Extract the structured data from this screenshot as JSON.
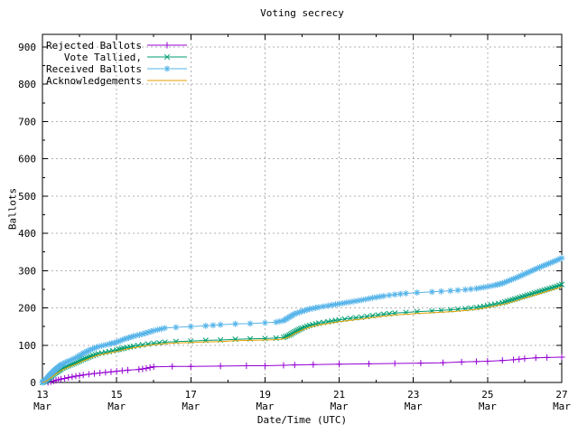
{
  "chart_data": {
    "type": "line",
    "title": "Voting secrecy",
    "xlabel": "Date/Time (UTC)",
    "ylabel": "Ballots",
    "xlim_day_of_march": [
      13,
      27
    ],
    "ylim": [
      0,
      934
    ],
    "grid": true,
    "legend_position": "top-left-inside",
    "y_major_ticks": [
      {
        "value": 0,
        "label": "0"
      },
      {
        "value": 100,
        "label": "100"
      },
      {
        "value": 200,
        "label": "200"
      },
      {
        "value": 300,
        "label": "300"
      },
      {
        "value": 400,
        "label": "400"
      },
      {
        "value": 500,
        "label": "500"
      },
      {
        "value": 600,
        "label": "600"
      },
      {
        "value": 700,
        "label": "700"
      },
      {
        "value": 800,
        "label": "800"
      },
      {
        "value": 900,
        "label": "900"
      }
    ],
    "y_minor_ticks": [
      50,
      150,
      250,
      350,
      450,
      550,
      650,
      750,
      850
    ],
    "x_major_ticks": [
      {
        "day": 13,
        "label_day": "13",
        "label_month": "Mar"
      },
      {
        "day": 15,
        "label_day": "15",
        "label_month": "Mar"
      },
      {
        "day": 17,
        "label_day": "17",
        "label_month": "Mar"
      },
      {
        "day": 19,
        "label_day": "19",
        "label_month": "Mar"
      },
      {
        "day": 21,
        "label_day": "21",
        "label_month": "Mar"
      },
      {
        "day": 23,
        "label_day": "23",
        "label_month": "Mar"
      },
      {
        "day": 25,
        "label_day": "25",
        "label_month": "Mar"
      },
      {
        "day": 27,
        "label_day": "27",
        "label_month": "Mar"
      }
    ],
    "x_minor_tick_days": [
      14,
      16,
      18,
      20,
      22,
      24,
      26
    ],
    "series": [
      {
        "name": "Rejected Ballots",
        "color": "#9400d3",
        "marker": "plus",
        "points": [
          [
            13.15,
            0
          ],
          [
            13.3,
            4
          ],
          [
            13.5,
            9
          ],
          [
            13.7,
            13
          ],
          [
            13.9,
            17
          ],
          [
            14.1,
            20
          ],
          [
            14.4,
            24
          ],
          [
            14.7,
            27
          ],
          [
            15.0,
            30
          ],
          [
            15.3,
            33
          ],
          [
            15.6,
            35
          ],
          [
            15.8,
            38
          ],
          [
            16.0,
            42
          ],
          [
            16.5,
            43
          ],
          [
            17.0,
            43
          ],
          [
            17.8,
            44
          ],
          [
            18.5,
            45
          ],
          [
            19.0,
            45
          ],
          [
            19.5,
            46
          ],
          [
            19.8,
            47
          ],
          [
            20.3,
            48
          ],
          [
            21.0,
            49
          ],
          [
            21.8,
            50
          ],
          [
            22.5,
            51
          ],
          [
            23.2,
            52
          ],
          [
            23.8,
            53
          ],
          [
            24.3,
            55
          ],
          [
            24.7,
            56
          ],
          [
            25.0,
            57
          ],
          [
            25.4,
            59
          ],
          [
            25.7,
            61
          ],
          [
            26.0,
            64
          ],
          [
            26.3,
            66
          ],
          [
            26.6,
            67
          ],
          [
            27.0,
            68
          ]
        ]
      },
      {
        "name": "Vote Tallied,",
        "color": "#009e73",
        "marker": "cross",
        "points": [
          [
            13.0,
            0
          ],
          [
            13.1,
            5
          ],
          [
            13.2,
            14
          ],
          [
            13.35,
            26
          ],
          [
            13.5,
            36
          ],
          [
            13.7,
            45
          ],
          [
            13.9,
            53
          ],
          [
            14.1,
            62
          ],
          [
            14.3,
            70
          ],
          [
            14.5,
            77
          ],
          [
            14.8,
            83
          ],
          [
            15.0,
            87
          ],
          [
            15.2,
            92
          ],
          [
            15.45,
            97
          ],
          [
            15.7,
            101
          ],
          [
            16.0,
            105
          ],
          [
            16.3,
            108
          ],
          [
            16.6,
            110
          ],
          [
            17.0,
            111
          ],
          [
            17.4,
            113
          ],
          [
            17.8,
            114
          ],
          [
            18.2,
            116
          ],
          [
            18.6,
            117
          ],
          [
            19.0,
            118
          ],
          [
            19.3,
            119
          ],
          [
            19.5,
            121
          ],
          [
            19.65,
            127
          ],
          [
            19.8,
            136
          ],
          [
            20.0,
            146
          ],
          [
            20.2,
            153
          ],
          [
            20.45,
            159
          ],
          [
            20.7,
            163
          ],
          [
            21.0,
            168
          ],
          [
            21.3,
            172
          ],
          [
            21.6,
            175
          ],
          [
            21.9,
            179
          ],
          [
            22.2,
            183
          ],
          [
            22.5,
            186
          ],
          [
            22.8,
            188
          ],
          [
            23.1,
            190
          ],
          [
            23.5,
            192
          ],
          [
            24.0,
            195
          ],
          [
            24.4,
            198
          ],
          [
            24.7,
            201
          ],
          [
            25.0,
            206
          ],
          [
            25.2,
            210
          ],
          [
            25.4,
            214
          ],
          [
            25.6,
            220
          ],
          [
            25.8,
            226
          ],
          [
            26.0,
            232
          ],
          [
            26.2,
            238
          ],
          [
            26.4,
            244
          ],
          [
            26.6,
            250
          ],
          [
            26.8,
            256
          ],
          [
            27.0,
            263
          ]
        ]
      },
      {
        "name": "Received Ballots",
        "color": "#56b4e9",
        "marker": "asterisk",
        "points": [
          [
            13.0,
            0
          ],
          [
            13.1,
            8
          ],
          [
            13.2,
            20
          ],
          [
            13.35,
            35
          ],
          [
            13.5,
            47
          ],
          [
            13.7,
            57
          ],
          [
            13.9,
            66
          ],
          [
            14.1,
            78
          ],
          [
            14.3,
            88
          ],
          [
            14.5,
            96
          ],
          [
            14.8,
            103
          ],
          [
            15.0,
            108
          ],
          [
            15.2,
            116
          ],
          [
            15.45,
            124
          ],
          [
            15.7,
            130
          ],
          [
            16.0,
            139
          ],
          [
            16.3,
            146
          ],
          [
            16.6,
            148
          ],
          [
            17.0,
            150
          ],
          [
            17.4,
            152
          ],
          [
            17.8,
            155
          ],
          [
            18.2,
            157
          ],
          [
            18.6,
            158
          ],
          [
            19.0,
            160
          ],
          [
            19.3,
            162
          ],
          [
            19.5,
            166
          ],
          [
            19.65,
            175
          ],
          [
            19.8,
            184
          ],
          [
            20.0,
            191
          ],
          [
            20.2,
            197
          ],
          [
            20.45,
            202
          ],
          [
            20.7,
            206
          ],
          [
            21.0,
            211
          ],
          [
            21.3,
            216
          ],
          [
            21.6,
            221
          ],
          [
            21.9,
            227
          ],
          [
            22.2,
            232
          ],
          [
            22.5,
            236
          ],
          [
            22.8,
            239
          ],
          [
            23.1,
            241
          ],
          [
            23.5,
            243
          ],
          [
            24.0,
            246
          ],
          [
            24.4,
            249
          ],
          [
            24.7,
            252
          ],
          [
            25.0,
            257
          ],
          [
            25.2,
            261
          ],
          [
            25.4,
            266
          ],
          [
            25.6,
            274
          ],
          [
            25.8,
            282
          ],
          [
            26.0,
            291
          ],
          [
            26.2,
            300
          ],
          [
            26.4,
            309
          ],
          [
            26.6,
            317
          ],
          [
            26.8,
            325
          ],
          [
            27.0,
            334
          ]
        ]
      },
      {
        "name": "Acknowledgements",
        "color": "#e69f00",
        "marker": "none",
        "points": [
          [
            13.0,
            0
          ],
          [
            13.1,
            3
          ],
          [
            13.2,
            11
          ],
          [
            13.35,
            22
          ],
          [
            13.5,
            32
          ],
          [
            13.7,
            41
          ],
          [
            13.9,
            49
          ],
          [
            14.1,
            58
          ],
          [
            14.3,
            66
          ],
          [
            14.5,
            73
          ],
          [
            14.8,
            79
          ],
          [
            15.0,
            83
          ],
          [
            15.2,
            88
          ],
          [
            15.45,
            93
          ],
          [
            15.7,
            97
          ],
          [
            16.0,
            101
          ],
          [
            16.3,
            104
          ],
          [
            16.6,
            106
          ],
          [
            17.0,
            107
          ],
          [
            17.4,
            109
          ],
          [
            17.8,
            110
          ],
          [
            18.2,
            112
          ],
          [
            18.6,
            113
          ],
          [
            19.0,
            114
          ],
          [
            19.3,
            115
          ],
          [
            19.5,
            117
          ],
          [
            19.65,
            122
          ],
          [
            19.8,
            131
          ],
          [
            20.0,
            141
          ],
          [
            20.2,
            148
          ],
          [
            20.45,
            154
          ],
          [
            20.7,
            158
          ],
          [
            21.0,
            163
          ],
          [
            21.3,
            167
          ],
          [
            21.6,
            170
          ],
          [
            21.9,
            174
          ],
          [
            22.2,
            178
          ],
          [
            22.5,
            181
          ],
          [
            22.8,
            183
          ],
          [
            23.1,
            185
          ],
          [
            23.5,
            187
          ],
          [
            24.0,
            190
          ],
          [
            24.4,
            193
          ],
          [
            24.7,
            196
          ],
          [
            25.0,
            201
          ],
          [
            25.2,
            205
          ],
          [
            25.4,
            209
          ],
          [
            25.6,
            214
          ],
          [
            25.8,
            220
          ],
          [
            26.0,
            226
          ],
          [
            26.2,
            232
          ],
          [
            26.4,
            238
          ],
          [
            26.6,
            244
          ],
          [
            26.8,
            250
          ],
          [
            27.0,
            256
          ]
        ]
      }
    ],
    "colors": {
      "background": "#ffffff",
      "axis": "#000000",
      "grid": "#b0b0b0",
      "text": "#000000"
    }
  }
}
